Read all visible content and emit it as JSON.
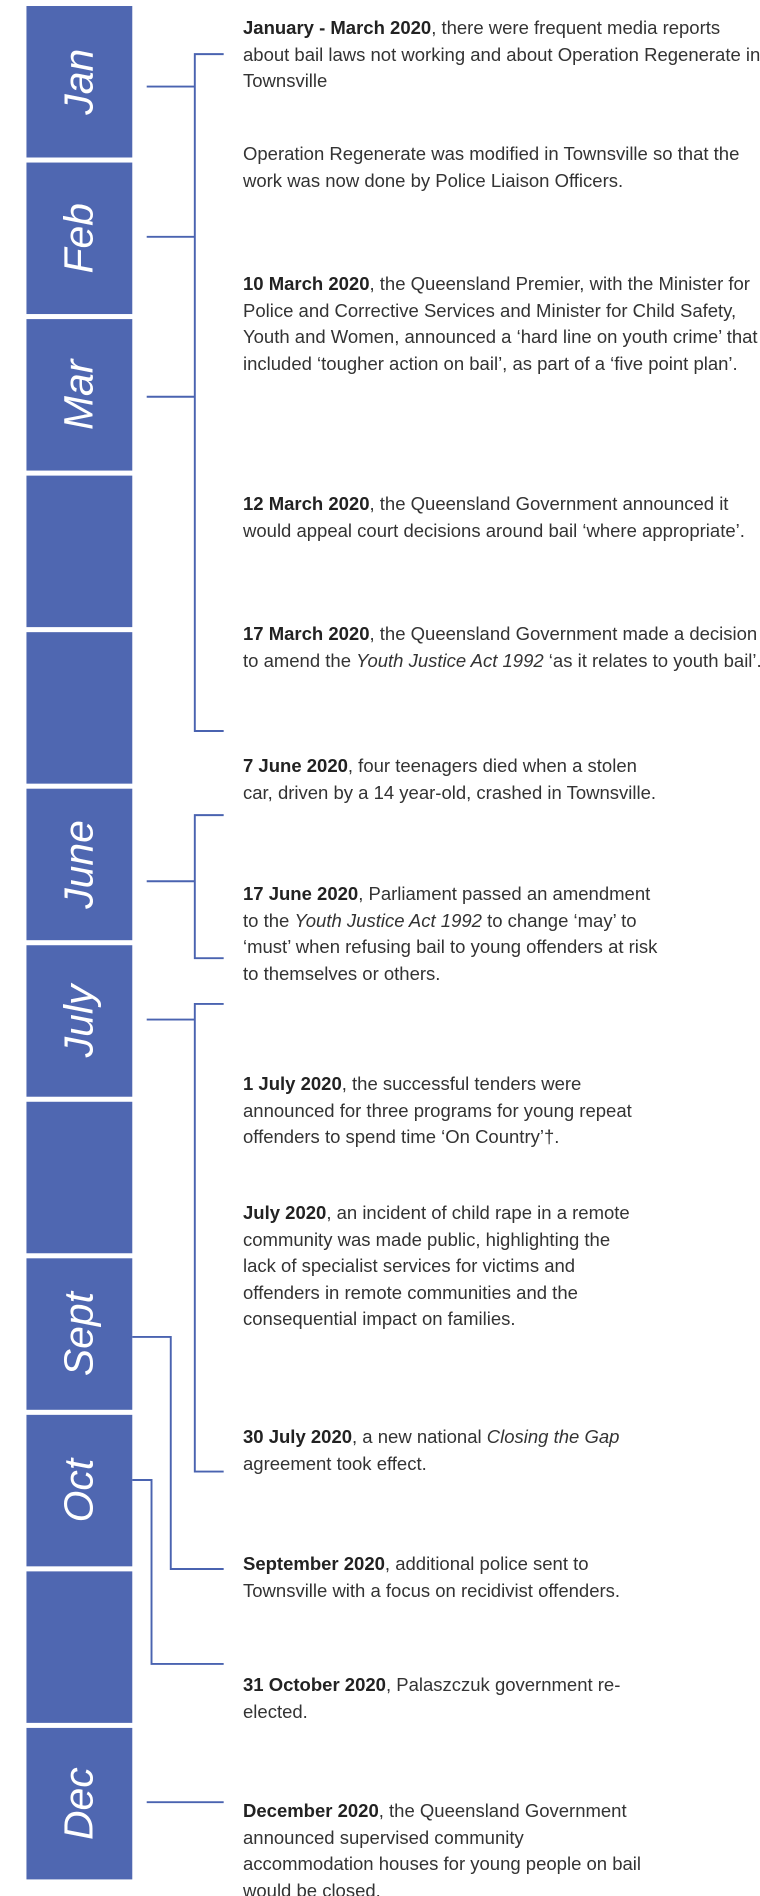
{
  "months": [
    "Jan",
    "Feb",
    "Mar",
    null,
    null,
    "June",
    "July",
    null,
    "Sept",
    "Oct",
    null,
    "Dec"
  ],
  "events": [
    {
      "date": "January - March 2020",
      "text": [
        {
          "text": ", there were frequent media reports about bail laws not working and about Operation Regenerate in Townsville"
        }
      ]
    },
    {
      "text": [
        {
          "text": "Operation Regenerate was modified in Townsville so that the work was now done by Police Liaison Officers."
        }
      ]
    },
    {
      "date": "10 March 2020",
      "text": [
        {
          "text": ", the Queensland Premier, with the Minister for Police and Corrective Services and Minister for Child Safety, Youth and Women, announced a ‘hard line on youth crime’ that included ‘tougher action on bail’, as part of a ‘five point plan’."
        }
      ]
    },
    {
      "date": "12 March 2020",
      "text": [
        {
          "text": ", the Queensland Government announced it would appeal court decisions around bail ‘where appropriate’."
        }
      ]
    },
    {
      "date": "17 March 2020",
      "text": [
        {
          "text": ", the Queensland Government made a decision to amend the "
        },
        {
          "text": "Youth Justice Act 1992",
          "italic": true
        },
        {
          "text": " ‘as it relates to youth bail’."
        }
      ]
    },
    {
      "date": "7 June 2020",
      "text": [
        {
          "text": ", four teenagers died when a stolen car, driven by a 14 year-old, crashed in Townsville."
        }
      ]
    },
    {
      "date": "17 June 2020",
      "text": [
        {
          "text": ", Parliament passed an amendment to the "
        },
        {
          "text": "Youth Justice Act 1992",
          "italic": true
        },
        {
          "text": " to change ‘may’ to ‘must’ when refusing bail to young offenders at risk to themselves or others."
        }
      ]
    },
    {
      "date": "1 July 2020",
      "text": [
        {
          "text": ", the successful tenders were announced for three programs for young repeat offenders to spend time ‘On Country’†."
        }
      ]
    },
    {
      "date": "July 2020",
      "text": [
        {
          "text": ", an incident of child rape in a remote community was made public, highlighting the lack of specialist services for victims and offenders in remote communities and the consequential impact on families."
        }
      ]
    },
    {
      "date": "30 July 2020",
      "text": [
        {
          "text": ", a new national "
        },
        {
          "text": "Closing the Gap",
          "italic": true
        },
        {
          "text": " agreement took effect."
        }
      ]
    },
    {
      "date": "September 2020",
      "text": [
        {
          "text": ", additional police sent to Townsville with a focus on recidivist offenders."
        }
      ]
    },
    {
      "date": "31 October 2020",
      "text": [
        {
          "text": ", Palaszczuk government re-elected."
        }
      ]
    },
    {
      "date": "December 2020",
      "text": [
        {
          "text": ", the Queensland Government announced supervised community accommodation houses for young people on bail would be closed."
        }
      ]
    }
  ]
}
